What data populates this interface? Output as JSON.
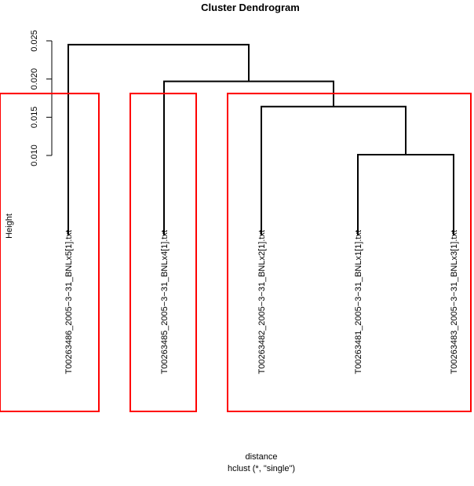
{
  "chart_data": {
    "type": "dendrogram",
    "title": "Cluster Dendrogram",
    "ylabel": "Height",
    "xlabel": "distance",
    "sub": "hclust (*, \"single\")",
    "ylim": [
      0.0097,
      0.0268
    ],
    "yticks": [
      0.01,
      0.015,
      0.02,
      0.025
    ],
    "ytick_labels": [
      "0.010",
      "0.015",
      "0.020",
      "0.025"
    ],
    "leaves": [
      "T00263486_2005−3−31_BNLx5[1].txt",
      "T00263485_2005−3−31_BNLx4[1].txt",
      "T00263482_2005−3−31_BNLx2[1].txt",
      "T00263481_2005−3−31_BNLx1[1].txt",
      "T00263483_2005−3−31_BNLx3[1].txt"
    ],
    "merges": [
      {
        "left": 3,
        "right": 4,
        "height": 0.0101
      },
      {
        "left": 2,
        "right": "m0",
        "height": 0.0164
      },
      {
        "left": 1,
        "right": "m1",
        "height": 0.0197
      },
      {
        "left": 0,
        "right": "m2",
        "height": 0.0245
      }
    ],
    "cut_height": 0.0181,
    "cluster_groups": [
      [
        0
      ],
      [
        1
      ],
      [
        2,
        3,
        4
      ]
    ],
    "colors": {
      "tree": "#000000",
      "cut": "#ff0000"
    }
  }
}
